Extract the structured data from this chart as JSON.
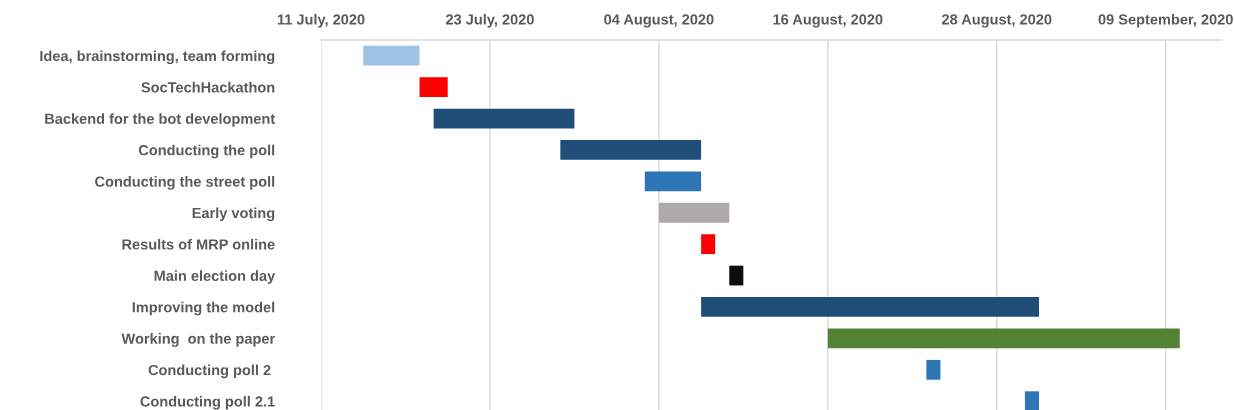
{
  "chart_data": {
    "type": "bar",
    "orientation": "horizontal",
    "categories": [
      "Idea, brainstorming, team forming",
      "SocTechHackathon",
      "Backend for the bot development",
      "Conducting the poll",
      "Conducting the street poll",
      "Early voting",
      "Results of MRP online",
      "Main election day",
      "Improving the model",
      "Working  on the paper",
      "Conducting poll 2 ",
      "Conducting poll 2.1"
    ],
    "base": [
      18457,
      18461,
      18462,
      18471,
      18477,
      18478,
      18481,
      18483,
      18481,
      18490,
      18497,
      18504
    ],
    "values": [
      4,
      2,
      10,
      10,
      4,
      5,
      1,
      1,
      24,
      25,
      1,
      1
    ],
    "colors": [
      "#9dc3e6",
      "#ff0000",
      "#1f4e79",
      "#1f4e79",
      "#2e75b6",
      "#aeaaaa",
      "#ff0000",
      "#0d0d0d",
      "#1f4e79",
      "#548235",
      "#2e75b6",
      "#2e75b6"
    ],
    "xlim": [
      "2020-07-11",
      "2020-09-13"
    ],
    "xticks": [
      {
        "value": "2020-07-11",
        "label": "11 July, 2020"
      },
      {
        "value": "2020-07-23",
        "label": "23 July, 2020"
      },
      {
        "value": "2020-08-04",
        "label": "04 August, 2020"
      },
      {
        "value": "2020-08-16",
        "label": "16 August, 2020"
      },
      {
        "value": "2020-08-28",
        "label": "28 August, 2020"
      },
      {
        "value": "2020-09-09",
        "label": "09 September, 2020"
      }
    ],
    "grid": "x"
  }
}
